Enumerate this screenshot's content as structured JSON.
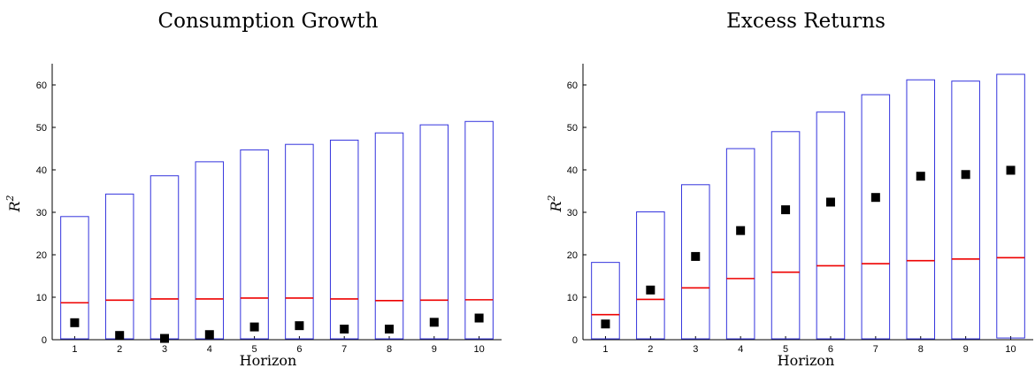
{
  "chart_data": [
    {
      "type": "box",
      "title": "Consumption Growth",
      "xlabel": "Horizon",
      "ylabel": "R",
      "ylabel_superscript": "2",
      "ylim": [
        0,
        65
      ],
      "yticks": [
        0,
        10,
        20,
        30,
        40,
        50,
        60
      ],
      "categories": [
        "1",
        "2",
        "3",
        "4",
        "5",
        "6",
        "7",
        "8",
        "9",
        "10"
      ],
      "box_low": [
        0.2,
        0.2,
        0.2,
        0.2,
        0.2,
        0.2,
        0.2,
        0.2,
        0.2,
        0.2
      ],
      "box_high": [
        29,
        34.3,
        38.6,
        41.9,
        44.7,
        46,
        47,
        48.7,
        50.6,
        51.4
      ],
      "median": [
        8.7,
        9.3,
        9.6,
        9.6,
        9.8,
        9.8,
        9.6,
        9.2,
        9.3,
        9.4
      ],
      "points": [
        4,
        1,
        0.3,
        1.2,
        3,
        3.3,
        2.5,
        2.5,
        4.1,
        5.1
      ],
      "colors": {
        "box": "#3333dd",
        "median": "#ee0000",
        "point": "#000000"
      }
    },
    {
      "type": "box",
      "title": "Excess Returns",
      "xlabel": "Horizon",
      "ylabel": "R",
      "ylabel_superscript": "2",
      "ylim": [
        0,
        65
      ],
      "yticks": [
        0,
        10,
        20,
        30,
        40,
        50,
        60
      ],
      "categories": [
        "1",
        "2",
        "3",
        "4",
        "5",
        "6",
        "7",
        "8",
        "9",
        "10"
      ],
      "box_low": [
        0.2,
        0.2,
        0.2,
        0.2,
        0.2,
        0.2,
        0.2,
        0.2,
        0.2,
        0.4
      ],
      "box_high": [
        18.2,
        30.1,
        36.5,
        45,
        49,
        53.6,
        57.7,
        61.2,
        60.9,
        62.5
      ],
      "median": [
        5.9,
        9.5,
        12.2,
        14.4,
        15.9,
        17.4,
        17.9,
        18.6,
        19,
        19.3
      ],
      "points": [
        3.7,
        11.7,
        19.6,
        25.7,
        30.6,
        32.4,
        33.5,
        38.5,
        38.9,
        39.9
      ],
      "colors": {
        "box": "#3333dd",
        "median": "#ee0000",
        "point": "#000000"
      }
    }
  ]
}
